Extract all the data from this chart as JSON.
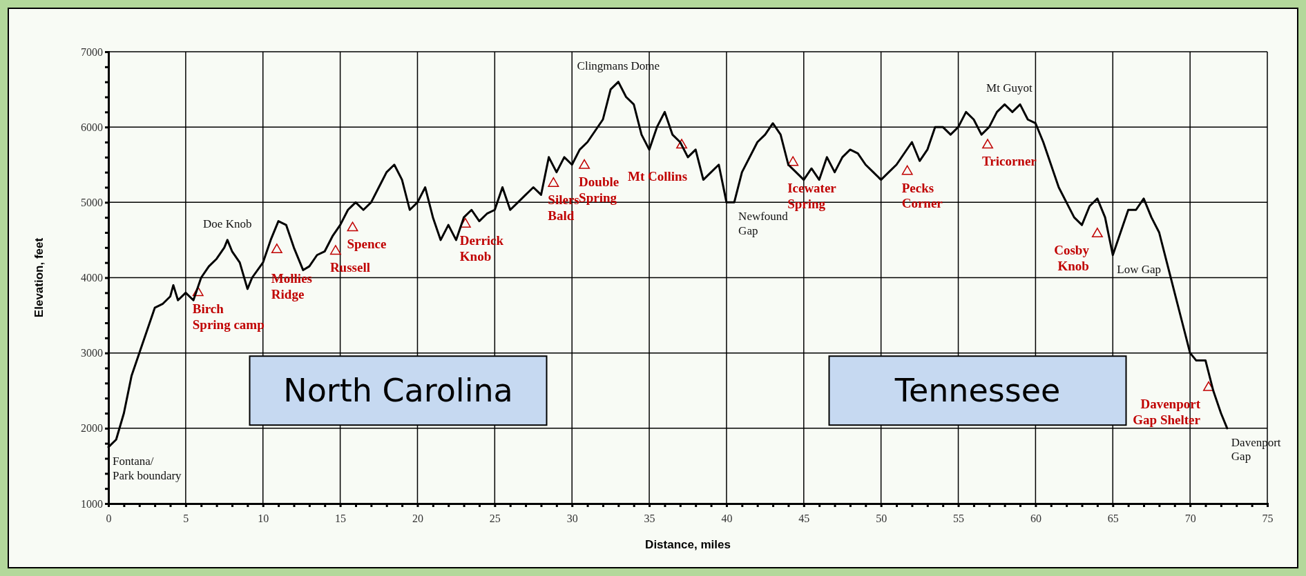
{
  "chart_data": {
    "type": "line",
    "xlabel": "Distance, miles",
    "ylabel": "Elevation, feet",
    "xlim": [
      0,
      75
    ],
    "ylim": [
      1000,
      7000
    ],
    "grid": true,
    "xticks": [
      0,
      {
        "value": 1,
        "label": null
      },
      {
        "value": 2,
        "label": null
      },
      {
        "value": 3,
        "label": null
      },
      {
        "value": 4,
        "label": null
      },
      5,
      {
        "value": 6,
        "label": null
      },
      {
        "value": 7,
        "label": null
      },
      {
        "value": 8,
        "label": null
      },
      {
        "value": 9,
        "label": null
      },
      10,
      {
        "value": 11,
        "label": null
      },
      {
        "value": 12,
        "label": null
      },
      {
        "value": 13,
        "label": null
      },
      {
        "value": 14,
        "label": null
      },
      15,
      {
        "value": 16,
        "label": null
      },
      {
        "value": 17,
        "label": null
      },
      {
        "value": 18,
        "label": null
      },
      {
        "value": 19,
        "label": null
      },
      20,
      {
        "value": 21,
        "label": null
      },
      {
        "value": 22,
        "label": null
      },
      {
        "value": 23,
        "label": null
      },
      {
        "value": 24,
        "label": null
      },
      25,
      {
        "value": 26,
        "label": null
      },
      {
        "value": 27,
        "label": null
      },
      {
        "value": 28,
        "label": null
      },
      {
        "value": 29,
        "label": null
      },
      30,
      {
        "value": 31,
        "label": null
      },
      {
        "value": 32,
        "label": null
      },
      {
        "value": 33,
        "label": null
      },
      {
        "value": 34,
        "label": null
      },
      35,
      {
        "value": 36,
        "label": null
      },
      {
        "value": 37,
        "label": null
      },
      {
        "value": 38,
        "label": null
      },
      {
        "value": 39,
        "label": null
      },
      40,
      {
        "value": 41,
        "label": null
      },
      {
        "value": 42,
        "label": null
      },
      {
        "value": 43,
        "label": null
      },
      {
        "value": 44,
        "label": null
      },
      45,
      {
        "value": 46,
        "label": null
      },
      {
        "value": 47,
        "label": null
      },
      {
        "value": 48,
        "label": null
      },
      {
        "value": 49,
        "label": null
      },
      50,
      {
        "value": 51,
        "label": null
      },
      {
        "value": 52,
        "label": null
      },
      {
        "value": 53,
        "label": null
      },
      {
        "value": 54,
        "label": null
      },
      55,
      {
        "value": 56,
        "label": null
      },
      {
        "value": 57,
        "label": null
      },
      {
        "value": 58,
        "label": null
      },
      {
        "value": 59,
        "label": null
      },
      60,
      {
        "value": 61,
        "label": null
      },
      {
        "value": 62,
        "label": null
      },
      {
        "value": 63,
        "label": null
      },
      {
        "value": 64,
        "label": null
      },
      65,
      {
        "value": 66,
        "label": null
      },
      {
        "value": 67,
        "label": null
      },
      {
        "value": 68,
        "label": null
      },
      {
        "value": 69,
        "label": null
      },
      70,
      {
        "value": 71,
        "label": null
      },
      {
        "value": 72,
        "label": null
      },
      {
        "value": 73,
        "label": null
      },
      {
        "value": 74,
        "label": null
      },
      75
    ],
    "yticks": [
      1000,
      {
        "value": 1200,
        "label": null
      },
      {
        "value": 1400,
        "label": null
      },
      {
        "value": 1600,
        "label": null
      },
      {
        "value": 1800,
        "label": null
      },
      2000,
      {
        "value": 2200,
        "label": null
      },
      {
        "value": 2400,
        "label": null
      },
      {
        "value": 2600,
        "label": null
      },
      {
        "value": 2800,
        "label": null
      },
      3000,
      {
        "value": 3200,
        "label": null
      },
      {
        "value": 3400,
        "label": null
      },
      {
        "value": 3600,
        "label": null
      },
      {
        "value": 3800,
        "label": null
      },
      4000,
      {
        "value": 4200,
        "label": null
      },
      {
        "value": 4400,
        "label": null
      },
      {
        "value": 4600,
        "label": null
      },
      {
        "value": 4800,
        "label": null
      },
      5000,
      {
        "value": 5200,
        "label": null
      },
      {
        "value": 5400,
        "label": null
      },
      {
        "value": 5600,
        "label": null
      },
      {
        "value": 5800,
        "label": null
      },
      6000,
      {
        "value": 6200,
        "label": null
      },
      {
        "value": 6400,
        "label": null
      },
      {
        "value": 6600,
        "label": null
      },
      {
        "value": 6800,
        "label": null
      },
      7000
    ],
    "series": [
      {
        "color": "#000000",
        "x": [
          0,
          0.5,
          1,
          1.5,
          2,
          2.5,
          3,
          3.5,
          4,
          4.2,
          4.5,
          5,
          5.5,
          6,
          6.5,
          7,
          7.5,
          7.7,
          8,
          8.5,
          9,
          9.3,
          10,
          10.5,
          11,
          11.5,
          12,
          12.6,
          13,
          13.5,
          14,
          14.5,
          15,
          15.5,
          16,
          16.5,
          17,
          17.5,
          18,
          18.5,
          19,
          19.5,
          20,
          20.5,
          21,
          21.5,
          22,
          22.5,
          23,
          23.5,
          24,
          24.5,
          25,
          25.5,
          26,
          26.5,
          27,
          27.5,
          28,
          28.5,
          29,
          29.5,
          30,
          30.5,
          31,
          32,
          32.5,
          33,
          33.5,
          34,
          34.5,
          35,
          35.5,
          36,
          36.5,
          37,
          37.5,
          38,
          38.5,
          39,
          39.5,
          40,
          40.5,
          41,
          42,
          42.5,
          43,
          43.5,
          44,
          44.5,
          45,
          45.5,
          46,
          46.5,
          47,
          47.5,
          48,
          48.5,
          49,
          49.5,
          50,
          50.5,
          51,
          52,
          52.5,
          53,
          53.5,
          54,
          54.5,
          55,
          55.5,
          56,
          56.5,
          57,
          57.5,
          58,
          58.5,
          59,
          59.5,
          60,
          60.5,
          61,
          61.5,
          62,
          62.5,
          63,
          63.5,
          64,
          64.5,
          65,
          65.5,
          66,
          66.5,
          67,
          67.5,
          68,
          68.5,
          69,
          69.5,
          70,
          70.4,
          71,
          71.5,
          72,
          72.4
        ],
        "values": [
          1750,
          1850,
          2200,
          2700,
          3000,
          3300,
          3600,
          3650,
          3750,
          3900,
          3700,
          3800,
          3700,
          4000,
          4150,
          4250,
          4400,
          4500,
          4350,
          4200,
          3850,
          4000,
          4200,
          4500,
          4750,
          4700,
          4400,
          4100,
          4150,
          4300,
          4350,
          4550,
          4700,
          4900,
          5000,
          4900,
          5000,
          5200,
          5400,
          5500,
          5300,
          4900,
          5000,
          5200,
          4800,
          4500,
          4700,
          4500,
          4800,
          4900,
          4750,
          4850,
          4900,
          5200,
          4900,
          5000,
          5100,
          5200,
          5100,
          5600,
          5400,
          5600,
          5500,
          5700,
          5800,
          6100,
          6500,
          6600,
          6400,
          6300,
          5900,
          5700,
          6000,
          6200,
          5900,
          5800,
          5600,
          5700,
          5300,
          5400,
          5500,
          5000,
          5000,
          5400,
          5800,
          5900,
          6050,
          5900,
          5500,
          5400,
          5300,
          5450,
          5300,
          5600,
          5400,
          5600,
          5700,
          5650,
          5500,
          5400,
          5300,
          5400,
          5500,
          5800,
          5550,
          5700,
          6000,
          6000,
          5900,
          6000,
          6200,
          6100,
          5900,
          6000,
          6200,
          6300,
          6200,
          6300,
          6100,
          6050,
          5800,
          5500,
          5200,
          5000,
          4800,
          4700,
          4950,
          5050,
          4800,
          4300,
          4600,
          4900,
          4900,
          5050,
          4800,
          4600,
          4200,
          3800,
          3400,
          3000,
          2900,
          2900,
          2500,
          2200,
          2000
        ]
      },
      {
        "type": "scatter",
        "marker": "triangle",
        "color": "#c00000",
        "x": [
          5.8,
          10.9,
          14.7,
          15.8,
          23.1,
          28.8,
          30.8,
          37.1,
          44.3,
          51.7,
          56.9,
          64.0,
          71.2
        ],
        "values": [
          3800,
          4370,
          4350,
          4660,
          4710,
          5250,
          5490,
          5760,
          5530,
          5410,
          5760,
          4580,
          2540
        ],
        "value_labels": [
          "Birch\nSpring camp",
          "Mollies\nRidge",
          "Russell",
          "Spence",
          "Derrick\nKnob",
          "Silers\nBald",
          "Double\nSpring",
          "Mt Collins",
          "Icewater\nSpring",
          "Pecks\nCorner",
          "Tricorner",
          "Cosby\nKnob",
          "Davenport\nGap Shelter"
        ]
      }
    ],
    "annotations": [
      {
        "text": "Fontana/\nPark boundary",
        "x": 0,
        "y": 1750
      },
      {
        "text": "Doe Knob",
        "x": 7.7,
        "y": 4500
      },
      {
        "text": "Clingmans Dome",
        "x": 33,
        "y": 6600
      },
      {
        "text": "Newfound\nGap",
        "x": 40.5,
        "y": 5000
      },
      {
        "text": "Mt Guyot",
        "x": 58.3,
        "y": 6300
      },
      {
        "text": "Low Gap",
        "x": 65,
        "y": 4300
      },
      {
        "text": "Davenport\nGap",
        "x": 72.4,
        "y": 2000
      },
      "North Carolina",
      "Tennessee"
    ]
  }
}
